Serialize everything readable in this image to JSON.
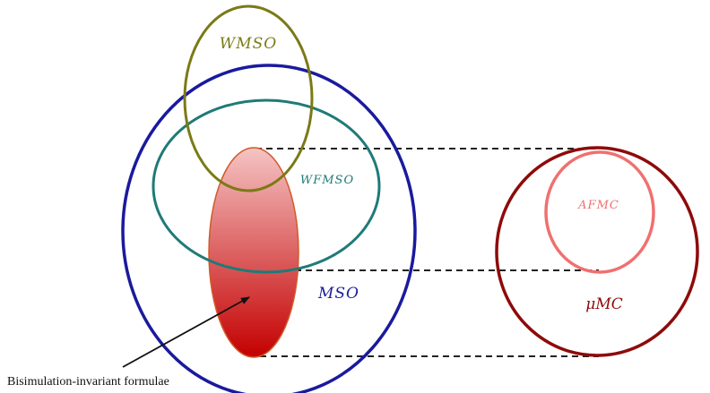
{
  "labels": {
    "wmso": "WMSO",
    "wfmso": "WFMSO",
    "mso": "MSO",
    "afmc": "AFMC",
    "mumc": "μMC",
    "bisim_caption": "Bisimulation-invariant formulae"
  },
  "colors": {
    "wmso": "#7a7a16",
    "wfmso": "#1f7a78",
    "mso": "#1a1a9e",
    "afmc": "#f07070",
    "mumc": "#8e0a0a",
    "bisim_fill_top": "#f5c4c4",
    "bisim_fill_bottom": "#c40000",
    "bisim_stroke": "#d05a2a",
    "dashes": "#222222",
    "arrow": "#111111"
  }
}
